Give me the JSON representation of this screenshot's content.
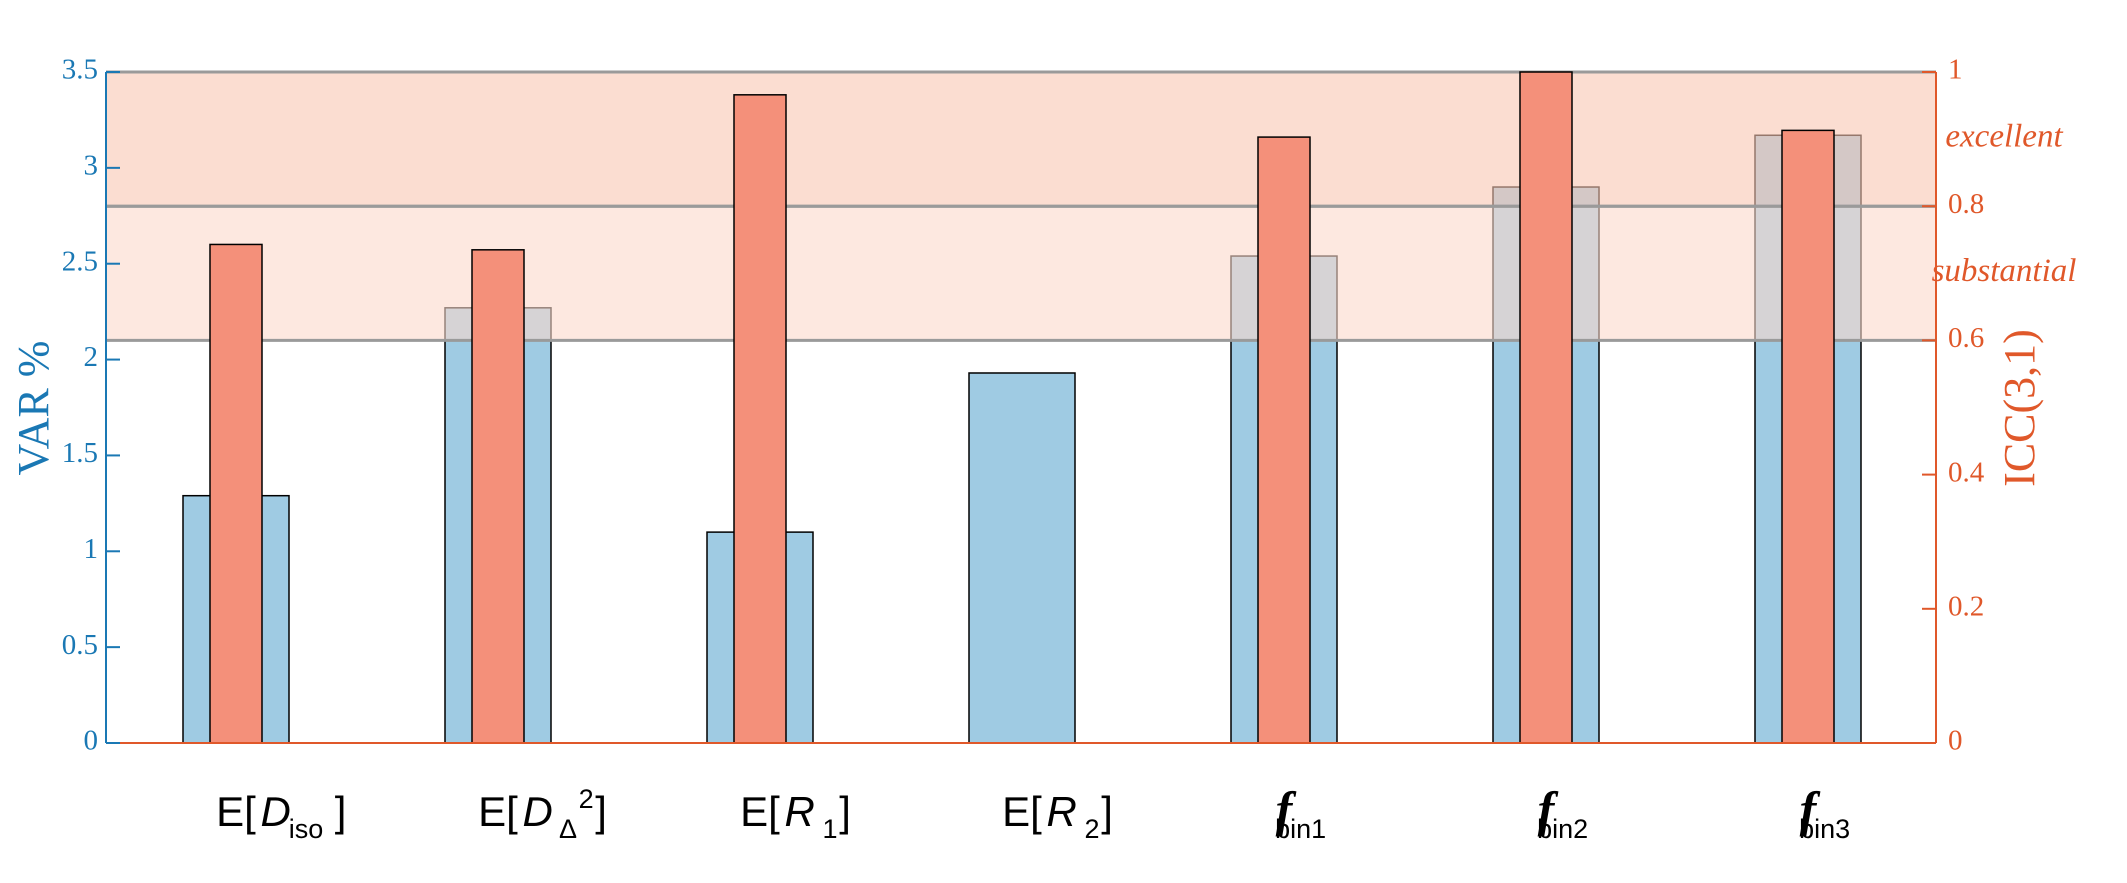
{
  "chart_data": {
    "type": "bar",
    "categories": [
      [
        {
          "text": "E[",
          "kind": "normal"
        },
        {
          "text": "D",
          "kind": "italic"
        },
        {
          "text": "iso",
          "kind": "sub"
        },
        {
          "text": "]",
          "kind": "normal"
        }
      ],
      [
        {
          "text": "E[",
          "kind": "normal"
        },
        {
          "text": "D",
          "kind": "italic"
        },
        {
          "text": "Δ",
          "kind": "sub"
        },
        {
          "text": "2",
          "kind": "sup"
        },
        {
          "text": "]",
          "kind": "normal"
        }
      ],
      [
        {
          "text": "E[",
          "kind": "normal"
        },
        {
          "text": "R",
          "kind": "italic"
        },
        {
          "text": "1",
          "kind": "sub"
        },
        {
          "text": "]",
          "kind": "normal"
        }
      ],
      [
        {
          "text": "E[",
          "kind": "normal"
        },
        {
          "text": "R",
          "kind": "italic"
        },
        {
          "text": "2",
          "kind": "sub"
        },
        {
          "text": "]",
          "kind": "normal"
        }
      ],
      [
        {
          "text": "f",
          "kind": "script"
        },
        {
          "text": "bin1",
          "kind": "sub"
        }
      ],
      [
        {
          "text": "f",
          "kind": "script"
        },
        {
          "text": "bin2",
          "kind": "sub"
        }
      ],
      [
        {
          "text": "f",
          "kind": "script"
        },
        {
          "text": "bin3",
          "kind": "sub"
        }
      ]
    ],
    "series": [
      {
        "color": "#9fcbe3",
        "values": [
          1.29,
          2.27,
          1.1,
          1.93,
          2.54,
          2.9,
          3.17
        ]
      },
      {
        "color": "#f4907a",
        "axis": "y2",
        "values": [
          0.743,
          0.735,
          0.966,
          null,
          0.903,
          1.0,
          0.913
        ]
      }
    ],
    "ylabel": "VAR %",
    "y2label": "ICC(3,1)",
    "ylim": [
      0,
      3.5
    ],
    "yticks": [
      0,
      0.5,
      1,
      1.5,
      2,
      2.5,
      3,
      3.5
    ],
    "y2lim": [
      0,
      1
    ],
    "y2ticks": [
      0,
      0.2,
      0.4,
      0.6,
      0.8,
      1
    ],
    "bands": [
      {
        "from": 0.6,
        "to": 0.8,
        "label": "substantial",
        "color": "#fbd9cb"
      },
      {
        "from": 0.8,
        "to": 1,
        "label": "excellent",
        "color": "#f9c6b3"
      }
    ],
    "ycolor": "#1a78b4",
    "y2color": "#e0582a"
  }
}
